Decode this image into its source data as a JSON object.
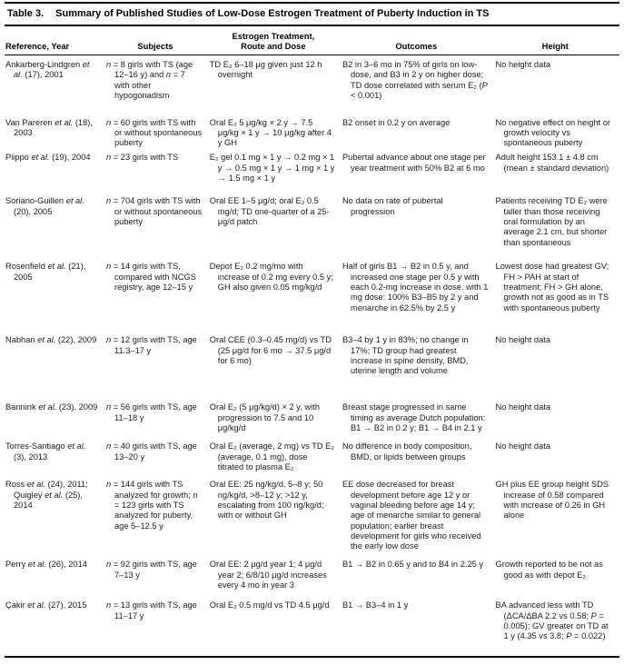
{
  "table": {
    "title_label": "Table 3.",
    "title_text": "Summary of Published Studies of Low-Dose Estrogen Treatment of Puberty Induction in TS",
    "columns": [
      "Reference, Year",
      "Subjects",
      "Estrogen Treatment,\nRoute and Dose",
      "Outcomes",
      "Height"
    ],
    "rows": [
      {
        "reference": "Ankarberg-Lindgren et al. (17), 2001",
        "subjects": "n = 8 girls with TS (age 12–16 y) and n = 7 with other hypogonadism",
        "treatment": "TD E₂ 6–18 μg given just 12 h overnight",
        "outcomes": "B2 in 3–6 mo in 75% of girls on low-dose, and B3 in 2 y on higher dose; TD dose correlated with serum E₂ (P < 0.001)",
        "height": "No height data"
      },
      {
        "reference": "Van Pareren et al. (18), 2003",
        "subjects": "n = 60 girls with TS with or without spontaneous puberty",
        "treatment": "Oral E₂ 5 μg/kg × 2 y → 7.5 μg/kg × 1 y → 10 μg/kg after 4 y GH",
        "outcomes": "B2 onset in 0.2 y on average",
        "height": "No negative effect on height or growth velocity vs spontaneous puberty"
      },
      {
        "reference": "Piippo et al. (19), 2004",
        "subjects": "n = 23 girls with TS",
        "treatment": "E₂ gel 0.1 mg × 1 y → 0.2 mg × 1 y → 0.5 mg × 1 y → 1 mg × 1 y → 1.5 mg × 1 y",
        "outcomes": "Pubertal advance about one stage per year treatment with 50% B2 at 6 mo",
        "height": "Adult height 153.1 ± 4.8 cm (mean ± standard deviation)"
      },
      {
        "reference": "Soriano-Guillen et al. (20), 2005",
        "subjects": "n = 704 girls with TS with or without spontaneous puberty",
        "treatment": "Oral EE 1–5 μg/d; oral E₂ 0.5 mg/d; TD one-quarter of a 25-μg/d patch",
        "outcomes": "No data on rate of pubertal progression",
        "height": "Patients receiving TD E₂ were taller than those receiving oral formulation by an average 2.1 cm, but shorter than spontaneous"
      },
      {
        "reference": "Rosenfield et al. (21), 2005",
        "subjects": "n = 14 girls with TS, compared with NCGS registry, age 12–15 y",
        "treatment": "Depot E₂ 0.2 mg/mo with increase of 0.2 mg every 0.5 y; GH also given 0.05 mg/kg/d",
        "outcomes": "Half of girls B1 → B2 in 0.5 y, and increased one stage per 0.5 y with each 0.2-mg increase in dose. with 1 mg dose: 100% B3–B5 by 2 y and menarche in 62.5% by 2.5 y",
        "height": "Lowest dose had greatest GV; FH > PAH at start of treatment; FH > GH alone, growth not as good as in TS with spontaneous puberty"
      },
      {
        "reference": "Nabhan et al. (22), 2009",
        "subjects": "n = 12 girls with TS, age 11.3–17 y",
        "treatment": "Oral CEE (0.3–0.45 mg/d) vs TD (25 μg/d for 6 mo → 37.5 μg/d for 6 mo)",
        "outcomes": "B3–4 by 1 y in 83%; no change in 17%; TD group had greatest increase in spine density, BMD, uterine length and volume",
        "height": "No height data"
      },
      {
        "reference": "Bannink et al. (23), 2009",
        "subjects": "n = 56 girls with TS, age 11–18 y",
        "treatment": "Oral E₂ (5 μg/kg/d) × 2 y, with progression to 7.5 and 10 μg/kg/d",
        "outcomes": "Breast stage progressed in same timing as average Dutch population: B1 → B2 in 0.2 y; B1 → B4 in 2.1 y",
        "height": "No height data"
      },
      {
        "reference": "Torres-Santiago et al. (3), 2013",
        "subjects": "n = 40 girls with TS, age 13–20 y",
        "treatment": "Oral E₂ (average, 2 mg) vs TD E₂ (average, 0.1 mg), dose titrated to plasma E₂",
        "outcomes": "No difference in body composition, BMD, or lipids between groups",
        "height": "No height data"
      },
      {
        "reference": "Ross et al. (24), 2011; Quigley et al. (25), 2014",
        "subjects": "n = 144 girls with TS analyzed for growth; n = 123 girls with TS analyzed for puberty, age 5–12.5 y",
        "treatment": "Oral EE: 25 ng/kg/d, 5–8 y; 50 ng/kg/d, >8–12 y; >12 y, escalating from 100 ng/kg/d; with or without GH",
        "outcomes": "EE dose decreased for breast development before age 12 y or vaginal bleeding before age 14 y; age of menarche similar to general population; earlier breast development for girls who received the early low dose",
        "height": "GH plus EE group height SDS increase of 0.58 compared with increase of 0.26 in GH alone"
      },
      {
        "reference": "Perry et al. (26), 2014",
        "subjects": "n = 92 girls with TS, age 7–13 y",
        "treatment": "Oral EE: 2 μg/d year 1; 4 μg/d year 2; 6/8/10 μg/d increases every 4 mo in year 3",
        "outcomes": "B1 → B2 in 0.65 y and to B4 in 2.25 y",
        "height": "Growth reported to be not as good as with depot E₂"
      },
      {
        "reference": "Çakir et al. (27), 2015",
        "subjects": "n = 13 girls with TS, age 11–17 y",
        "treatment": "Oral E₂ 0.5 mg/d vs TD 4.5 μg/d",
        "outcomes": "B1 → B3–4 in 1 y",
        "height": "BA advanced less with TD (ΔCA/ΔBA 2.2 vs 0.58; P = 0.005); GV greater on TD at 1 y (4.35 vs 3.8; P = 0.022)"
      }
    ]
  }
}
